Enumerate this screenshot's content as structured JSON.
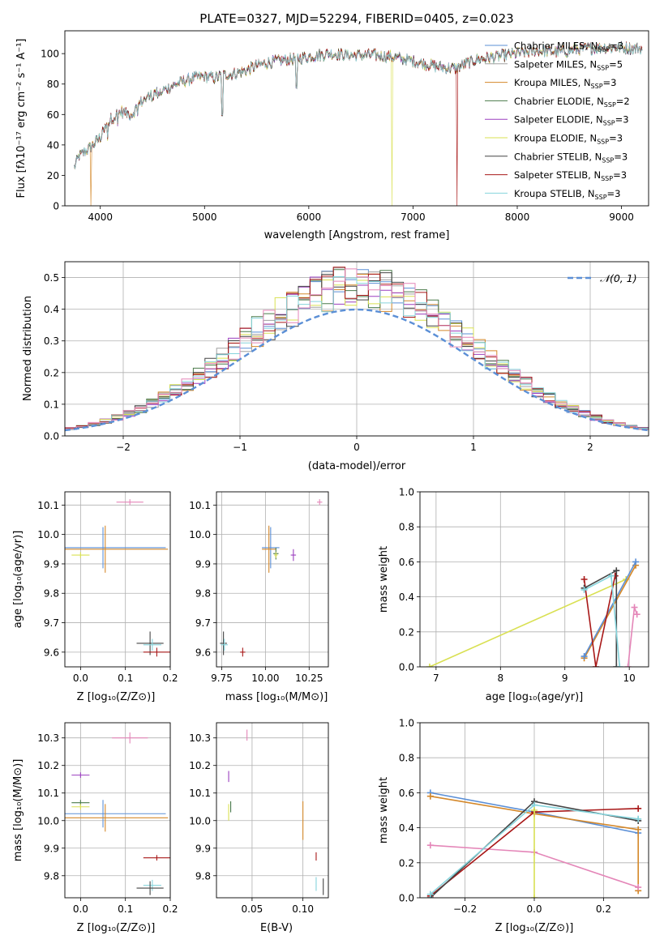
{
  "figure_title": "PLATE=0327, MJD=52294, FIBERID=0405, z=0.023",
  "colors": {
    "chabrier_miles": "#5b8fd6",
    "salpeter_miles": "#a0a0a0",
    "kroupa_miles": "#d4882a",
    "chabrier_elodie": "#4a7a4a",
    "salpeter_elodie": "#9b3fbf",
    "kroupa_elodie": "#d9e052",
    "chabrier_stelib": "#444444",
    "salpeter_stelib": "#a81818",
    "kroupa_stelib": "#86d4dc",
    "pink": "#e486b8",
    "grid": "#b0b0b0"
  },
  "chart_data": [
    {
      "id": "spectrum",
      "type": "line",
      "title": "PLATE=0327, MJD=52294, FIBERID=0405, z=0.023",
      "xlabel": "wavelength [Angstrom, rest frame]",
      "ylabel": "Flux [fλ10⁻¹⁷ erg cm⁻² s⁻¹ A⁻¹]",
      "xlim": [
        3660,
        9260
      ],
      "ylim": [
        0,
        115
      ],
      "xticks": [
        4000,
        5000,
        6000,
        7000,
        8000,
        9000
      ],
      "yticks": [
        0,
        20,
        40,
        60,
        80,
        100
      ],
      "grid": false,
      "legend": "right",
      "legend_entries": [
        "Chabrier MILES, N_SSP=3",
        "Salpeter MILES, N_SSP=5",
        "Kroupa MILES, N_SSP=3",
        "Chabrier ELODIE, N_SSP=2",
        "Salpeter ELODIE, N_SSP=3",
        "Kroupa ELODIE, N_SSP=3",
        "Chabrier STELIB, N_SSP=3",
        "Salpeter STELIB, N_SSP=3",
        "Kroupa STELIB, N_SSP=3"
      ],
      "continuum": {
        "x": [
          3750,
          3800,
          3900,
          4000,
          4100,
          4200,
          4300,
          4400,
          4500,
          4600,
          4700,
          4800,
          4900,
          5000,
          5100,
          5200,
          5300,
          5400,
          5500,
          5600,
          5700,
          5800,
          5900,
          6000,
          6200,
          6400,
          6600,
          6800,
          7000,
          7200,
          7400,
          7600,
          7800,
          8000,
          8200,
          8400,
          8600,
          8800,
          9000,
          9200
        ],
        "y": [
          25,
          33,
          38,
          45,
          57,
          62,
          60,
          69,
          73,
          76,
          79,
          82,
          84,
          85,
          84,
          86,
          87,
          89,
          92,
          94,
          95,
          96,
          97,
          98,
          100,
          99,
          99,
          98,
          95,
          92,
          90,
          96,
          98,
          100,
          102,
          101,
          103,
          104,
          104,
          103
        ]
      },
      "dips": [
        {
          "x": 3910,
          "y": 0
        },
        {
          "x": 6800,
          "y": 0
        },
        {
          "x": 7420,
          "y": 0
        },
        {
          "x": 5880,
          "y": 78
        },
        {
          "x": 5170,
          "y": 62
        }
      ]
    },
    {
      "id": "residual-hist",
      "type": "bar",
      "xlabel": "(data-model)/error",
      "ylabel": "Normed distribution",
      "xlim": [
        -2.5,
        2.5
      ],
      "ylim": [
        0,
        0.55
      ],
      "xticks": [
        -2,
        -1,
        0,
        1,
        2
      ],
      "yticks": [
        0.0,
        0.1,
        0.2,
        0.3,
        0.4,
        0.5
      ],
      "grid": true,
      "legend": "top-right",
      "normal_label": "𝒩(0, 1)",
      "bin_edges_start": -2.5,
      "bin_width": 0.1
    },
    {
      "id": "z-age",
      "type": "scatter",
      "xlabel": "Z [log₁₀(Z/Z⊙)]",
      "ylabel": "age  [log₁₀(age/yr)]",
      "xlim": [
        -0.035,
        0.2
      ],
      "ylim": [
        9.55,
        10.145
      ],
      "xticks": [
        0.0,
        0.1,
        0.2
      ],
      "yticks": [
        9.6,
        9.7,
        9.8,
        9.9,
        10.0,
        10.1
      ],
      "grid": true,
      "points": [
        {
          "color": "pink",
          "x": 0.11,
          "y": 10.11,
          "xerr": 0.03,
          "yerr": 0.01
        },
        {
          "color": "chabrier_miles",
          "x": 0.05,
          "y": 9.955,
          "xerr": 0.14,
          "yerr": 0.07
        },
        {
          "color": "kroupa_miles",
          "x": 0.055,
          "y": 9.95,
          "xerr": 0.14,
          "yerr": 0.08
        },
        {
          "color": "kroupa_elodie",
          "x": 0.0,
          "y": 9.93,
          "xerr": 0.02,
          "yerr": 0.01
        },
        {
          "color": "chabrier_stelib",
          "x": 0.155,
          "y": 9.63,
          "xerr": 0.03,
          "yerr": 0.04
        },
        {
          "color": "kroupa_stelib",
          "x": 0.16,
          "y": 9.625,
          "xerr": 0.02,
          "yerr": 0.02
        },
        {
          "color": "salpeter_stelib",
          "x": 0.17,
          "y": 9.6,
          "xerr": 0.03,
          "yerr": 0.015
        }
      ]
    },
    {
      "id": "mass-age",
      "type": "scatter",
      "xlabel": "mass [log₁₀(M/M⊙)]",
      "ylabel": "",
      "xlim": [
        9.72,
        10.36
      ],
      "ylim": [
        9.55,
        10.145
      ],
      "xticks": [
        9.75,
        10.0,
        10.25
      ],
      "yticks": [
        9.6,
        9.7,
        9.8,
        9.9,
        10.0,
        10.1
      ],
      "grid": true,
      "points": [
        {
          "color": "pink",
          "x": 10.31,
          "y": 10.11,
          "xerr": 0.015,
          "yerr": 0.01
        },
        {
          "color": "chabrier_miles",
          "x": 10.03,
          "y": 9.955,
          "xerr": 0.05,
          "yerr": 0.07
        },
        {
          "color": "kroupa_miles",
          "x": 10.02,
          "y": 9.95,
          "xerr": 0.04,
          "yerr": 0.08
        },
        {
          "color": "chabrier_elodie",
          "x": 10.06,
          "y": 9.935,
          "xerr": 0.015,
          "yerr": 0.02
        },
        {
          "color": "kroupa_elodie",
          "x": 10.06,
          "y": 9.93,
          "xerr": 0.01,
          "yerr": 0.01
        },
        {
          "color": "salpeter_elodie",
          "x": 10.16,
          "y": 9.93,
          "xerr": 0.015,
          "yerr": 0.02
        },
        {
          "color": "chabrier_stelib",
          "x": 9.76,
          "y": 9.63,
          "xerr": 0.02,
          "yerr": 0.04
        },
        {
          "color": "kroupa_stelib",
          "x": 9.765,
          "y": 9.625,
          "xerr": 0.02,
          "yerr": 0.02
        },
        {
          "color": "salpeter_stelib",
          "x": 9.87,
          "y": 9.6,
          "xerr": 0.015,
          "yerr": 0.015
        }
      ]
    },
    {
      "id": "age-weight",
      "type": "line",
      "xlabel": "age  [log₁₀(age/yr)]",
      "ylabel": "mass weight",
      "xlim": [
        6.75,
        10.3
      ],
      "ylim": [
        0,
        1.0
      ],
      "xticks": [
        7,
        8,
        9,
        10
      ],
      "yticks": [
        0.0,
        0.2,
        0.4,
        0.6,
        0.8,
        1.0
      ],
      "grid": true,
      "series": [
        {
          "color": "kroupa_elodie",
          "x": [
            6.9,
            9.95
          ],
          "y": [
            0.0,
            0.5
          ]
        },
        {
          "color": "kroupa_miles",
          "x": [
            9.3,
            10.1
          ],
          "y": [
            0.05,
            0.58
          ]
        },
        {
          "color": "chabrier_miles",
          "x": [
            9.3,
            10.1
          ],
          "y": [
            0.06,
            0.6
          ]
        },
        {
          "color": "salpeter_stelib",
          "x": [
            9.3,
            9.48,
            9.78
          ],
          "y": [
            0.5,
            0.0,
            0.52
          ]
        },
        {
          "color": "chabrier_stelib",
          "x": [
            9.3,
            9.8,
            9.8
          ],
          "y": [
            0.45,
            0.55,
            0.0
          ]
        },
        {
          "color": "kroupa_stelib",
          "x": [
            9.3,
            9.72,
            9.85
          ],
          "y": [
            0.44,
            0.52,
            0.0
          ]
        },
        {
          "color": "pink",
          "x": [
            9.98,
            10.08,
            10.12
          ],
          "y": [
            0.0,
            0.34,
            0.3
          ]
        }
      ]
    },
    {
      "id": "z-mass",
      "type": "scatter",
      "xlabel": "Z [log₁₀(Z/Z⊙)]",
      "ylabel": "mass [log₁₀(M/M⊙)]",
      "xlim": [
        -0.035,
        0.2
      ],
      "ylim": [
        9.72,
        10.355
      ],
      "xticks": [
        0.0,
        0.1,
        0.2
      ],
      "yticks": [
        9.8,
        9.9,
        10.0,
        10.1,
        10.2,
        10.3
      ],
      "grid": true,
      "points": [
        {
          "color": "pink",
          "x": 0.11,
          "y": 10.3,
          "xerr": 0.04,
          "yerr": 0.02
        },
        {
          "color": "salpeter_elodie",
          "x": 0.0,
          "y": 10.165,
          "xerr": 0.02,
          "yerr": 0.01
        },
        {
          "color": "chabrier_elodie",
          "x": 0.0,
          "y": 10.065,
          "xerr": 0.02,
          "yerr": 0.01
        },
        {
          "color": "kroupa_elodie",
          "x": 0.0,
          "y": 10.05,
          "xerr": 0.02,
          "yerr": 0.01
        },
        {
          "color": "chabrier_miles",
          "x": 0.05,
          "y": 10.025,
          "xerr": 0.14,
          "yerr": 0.05
        },
        {
          "color": "kroupa_miles",
          "x": 0.055,
          "y": 10.01,
          "xerr": 0.14,
          "yerr": 0.05
        },
        {
          "color": "salpeter_stelib",
          "x": 0.17,
          "y": 9.865,
          "xerr": 0.03,
          "yerr": 0.01
        },
        {
          "color": "kroupa_stelib",
          "x": 0.16,
          "y": 9.765,
          "xerr": 0.02,
          "yerr": 0.02
        },
        {
          "color": "chabrier_stelib",
          "x": 0.155,
          "y": 9.755,
          "xerr": 0.03,
          "yerr": 0.025
        }
      ]
    },
    {
      "id": "ebv-mass",
      "type": "scatter",
      "xlabel": "E(B-V)",
      "ylabel": "",
      "xlim": [
        0.015,
        0.125
      ],
      "ylim": [
        9.72,
        10.355
      ],
      "xticks": [
        0.05,
        0.1
      ],
      "yticks": [
        9.8,
        9.9,
        10.0,
        10.1,
        10.2,
        10.3
      ],
      "grid": true,
      "points": [
        {
          "color": "pink",
          "x": 0.045,
          "y": 10.31,
          "xerr": 0.0,
          "yerr": 0.02
        },
        {
          "color": "salpeter_elodie",
          "x": 0.027,
          "y": 10.16,
          "xerr": 0.0,
          "yerr": 0.02
        },
        {
          "color": "chabrier_elodie",
          "x": 0.029,
          "y": 10.05,
          "xerr": 0.0,
          "yerr": 0.02
        },
        {
          "color": "kroupa_elodie",
          "x": 0.027,
          "y": 10.03,
          "xerr": 0.0,
          "yerr": 0.03
        },
        {
          "color": "kroupa_miles",
          "x": 0.1,
          "y": 10.0,
          "xerr": 0.0,
          "yerr": 0.07
        },
        {
          "color": "salpeter_stelib",
          "x": 0.113,
          "y": 9.87,
          "xerr": 0.0,
          "yerr": 0.015
        },
        {
          "color": "kroupa_stelib",
          "x": 0.113,
          "y": 9.77,
          "xerr": 0.0,
          "yerr": 0.025
        },
        {
          "color": "chabrier_stelib",
          "x": 0.12,
          "y": 9.76,
          "xerr": 0.0,
          "yerr": 0.03
        }
      ]
    },
    {
      "id": "z-weight",
      "type": "line",
      "xlabel": "Z [log₁₀(Z/Z⊙)]",
      "ylabel": "mass weight",
      "xlim": [
        -0.33,
        0.33
      ],
      "ylim": [
        0,
        1.0
      ],
      "xticks": [
        -0.2,
        0.0,
        0.2
      ],
      "yticks": [
        0.0,
        0.2,
        0.4,
        0.6,
        0.8,
        1.0
      ],
      "grid": true,
      "series": [
        {
          "color": "chabrier_miles",
          "x": [
            -0.3,
            0.0,
            0.3
          ],
          "y": [
            0.6,
            0.49,
            0.37
          ]
        },
        {
          "color": "kroupa_miles",
          "x": [
            -0.3,
            0.0,
            0.3,
            0.3
          ],
          "y": [
            0.58,
            0.48,
            0.39,
            0.04
          ]
        },
        {
          "color": "pink",
          "x": [
            -0.3,
            0.0,
            0.3
          ],
          "y": [
            0.3,
            0.26,
            0.06
          ]
        },
        {
          "color": "salpeter_stelib",
          "x": [
            -0.3,
            0.0,
            0.3
          ],
          "y": [
            0.01,
            0.49,
            0.51
          ]
        },
        {
          "color": "chabrier_stelib",
          "x": [
            -0.3,
            0.0,
            0.3
          ],
          "y": [
            0.0,
            0.55,
            0.44
          ]
        },
        {
          "color": "kroupa_stelib",
          "x": [
            -0.3,
            0.0,
            0.3
          ],
          "y": [
            0.02,
            0.53,
            0.45
          ]
        },
        {
          "color": "kroupa_elodie",
          "x": [
            0.0,
            0.0
          ],
          "y": [
            0.0,
            0.5
          ]
        }
      ]
    }
  ]
}
